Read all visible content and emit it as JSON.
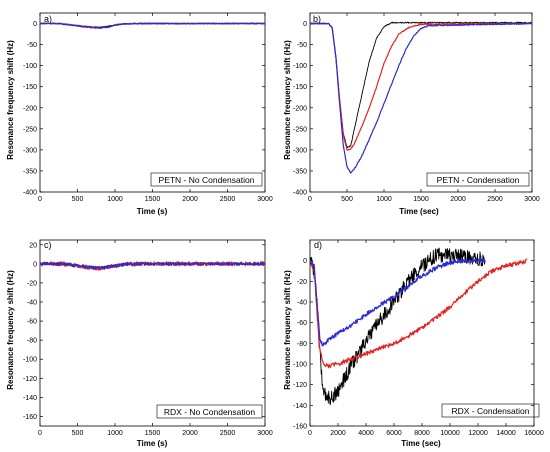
{
  "chart_data": [
    {
      "type": "line",
      "panel_label": "a)",
      "annotation": "PETN - No Condensation",
      "xlabel": "Time (s)",
      "ylabel": "Resonance frequency shift (Hz)",
      "xlim": [
        0,
        3000
      ],
      "ylim": [
        -400,
        25
      ],
      "xticks": [
        0,
        500,
        1000,
        1500,
        2000,
        2500,
        3000
      ],
      "yticks": [
        0,
        -50,
        -100,
        -150,
        -200,
        -250,
        -300,
        -350,
        -400
      ],
      "colors": [
        "#000000",
        "#e32222",
        "#2b2bd6"
      ],
      "series": [
        {
          "color": "#000000",
          "noise": 1.2,
          "points": [
            [
              0,
              0
            ],
            [
              250,
              0
            ],
            [
              400,
              -3
            ],
            [
              550,
              -6
            ],
            [
              700,
              -8
            ],
            [
              800,
              -9
            ],
            [
              900,
              -7
            ],
            [
              1000,
              -3
            ],
            [
              1100,
              -1
            ],
            [
              1300,
              0
            ],
            [
              3000,
              0
            ]
          ]
        },
        {
          "color": "#e32222",
          "noise": 1.2,
          "points": [
            [
              0,
              0
            ],
            [
              250,
              0
            ],
            [
              400,
              -3
            ],
            [
              550,
              -7
            ],
            [
              700,
              -10
            ],
            [
              800,
              -11
            ],
            [
              900,
              -9
            ],
            [
              1000,
              -4
            ],
            [
              1100,
              -1
            ],
            [
              1300,
              0
            ],
            [
              3000,
              0
            ]
          ]
        },
        {
          "color": "#2b2bd6",
          "noise": 1.2,
          "points": [
            [
              0,
              0
            ],
            [
              250,
              0
            ],
            [
              400,
              -3
            ],
            [
              550,
              -6
            ],
            [
              700,
              -9
            ],
            [
              800,
              -10
            ],
            [
              900,
              -8
            ],
            [
              1000,
              -4
            ],
            [
              1100,
              -1
            ],
            [
              1300,
              0
            ],
            [
              3000,
              0
            ]
          ]
        }
      ]
    },
    {
      "type": "line",
      "panel_label": "b)",
      "annotation": "PETN - Condensation",
      "xlabel": "Time (sec)",
      "ylabel": "Resonance frequency shift (Hz)",
      "xlim": [
        0,
        3000
      ],
      "ylim": [
        -400,
        25
      ],
      "xticks": [
        0,
        500,
        1000,
        1500,
        2000,
        2500,
        3000
      ],
      "yticks": [
        0,
        -50,
        -100,
        -150,
        -200,
        -250,
        -300,
        -350,
        -400
      ],
      "colors": [
        "#000000",
        "#e32222",
        "#2b2bd6"
      ],
      "series": [
        {
          "color": "#000000",
          "noise": 1.5,
          "points": [
            [
              0,
              0
            ],
            [
              250,
              0
            ],
            [
              300,
              -10
            ],
            [
              350,
              -80
            ],
            [
              400,
              -180
            ],
            [
              450,
              -260
            ],
            [
              500,
              -295
            ],
            [
              550,
              -290
            ],
            [
              600,
              -250
            ],
            [
              700,
              -170
            ],
            [
              800,
              -90
            ],
            [
              900,
              -35
            ],
            [
              1000,
              -8
            ],
            [
              1100,
              2
            ],
            [
              1300,
              2
            ],
            [
              3000,
              2
            ]
          ]
        },
        {
          "color": "#e32222",
          "noise": 1.2,
          "points": [
            [
              0,
              0
            ],
            [
              250,
              0
            ],
            [
              300,
              -10
            ],
            [
              350,
              -80
            ],
            [
              400,
              -180
            ],
            [
              450,
              -265
            ],
            [
              500,
              -300
            ],
            [
              550,
              -298
            ],
            [
              600,
              -285
            ],
            [
              700,
              -245
            ],
            [
              800,
              -200
            ],
            [
              900,
              -150
            ],
            [
              1000,
              -95
            ],
            [
              1100,
              -55
            ],
            [
              1200,
              -25
            ],
            [
              1350,
              -8
            ],
            [
              1500,
              -2
            ],
            [
              3000,
              0
            ]
          ]
        },
        {
          "color": "#2b2bd6",
          "noise": 1.2,
          "points": [
            [
              0,
              0
            ],
            [
              250,
              0
            ],
            [
              300,
              -10
            ],
            [
              350,
              -80
            ],
            [
              400,
              -190
            ],
            [
              450,
              -290
            ],
            [
              500,
              -340
            ],
            [
              550,
              -355
            ],
            [
              600,
              -345
            ],
            [
              700,
              -315
            ],
            [
              800,
              -275
            ],
            [
              900,
              -235
            ],
            [
              1000,
              -190
            ],
            [
              1100,
              -145
            ],
            [
              1200,
              -100
            ],
            [
              1300,
              -60
            ],
            [
              1400,
              -30
            ],
            [
              1500,
              -12
            ],
            [
              1600,
              -5
            ],
            [
              3000,
              0
            ]
          ]
        }
      ]
    },
    {
      "type": "line",
      "panel_label": "c)",
      "annotation": "RDX - No Condensation",
      "xlabel": "Time (s)",
      "ylabel": "Resonance frequency shift (Hz)",
      "xlim": [
        0,
        3000
      ],
      "ylim": [
        -170,
        25
      ],
      "xticks": [
        0,
        500,
        1000,
        1500,
        2000,
        2500,
        3000
      ],
      "yticks": [
        20,
        0,
        -20,
        -40,
        -60,
        -80,
        -100,
        -120,
        -140,
        -160
      ],
      "colors": [
        "#000000",
        "#e32222",
        "#2b2bd6"
      ],
      "series": [
        {
          "color": "#000000",
          "noise": 1.5,
          "points": [
            [
              0,
              0
            ],
            [
              300,
              0
            ],
            [
              500,
              -2
            ],
            [
              700,
              -4
            ],
            [
              850,
              -4
            ],
            [
              1000,
              -2
            ],
            [
              1200,
              0
            ],
            [
              3000,
              0
            ]
          ]
        },
        {
          "color": "#e32222",
          "noise": 2.2,
          "points": [
            [
              0,
              0
            ],
            [
              300,
              0
            ],
            [
              500,
              -2
            ],
            [
              700,
              -4
            ],
            [
              850,
              -5
            ],
            [
              1000,
              -2
            ],
            [
              1200,
              0
            ],
            [
              3000,
              0
            ]
          ]
        },
        {
          "color": "#2b2bd6",
          "noise": 1.5,
          "points": [
            [
              0,
              0
            ],
            [
              300,
              0
            ],
            [
              500,
              -2
            ],
            [
              700,
              -4
            ],
            [
              850,
              -4
            ],
            [
              1000,
              -2
            ],
            [
              1200,
              0
            ],
            [
              3000,
              0
            ]
          ]
        }
      ]
    },
    {
      "type": "line",
      "panel_label": "d)",
      "annotation": "RDX - Condensation",
      "xlabel": "Time (sec)",
      "ylabel": "Resonance frequency shift (Hz)",
      "xlim": [
        0,
        16000
      ],
      "ylim": [
        -160,
        20
      ],
      "xticks": [
        0,
        2000,
        4000,
        6000,
        8000,
        10000,
        12000,
        14000,
        16000
      ],
      "yticks": [
        0,
        -20,
        -40,
        -60,
        -80,
        -100,
        -120,
        -140,
        -160
      ],
      "colors": [
        "#000000",
        "#e32222",
        "#2b2bd6"
      ],
      "series": [
        {
          "color": "#000000",
          "noise": 7,
          "points": [
            [
              0,
              0
            ],
            [
              300,
              -10
            ],
            [
              500,
              -40
            ],
            [
              700,
              -90
            ],
            [
              900,
              -120
            ],
            [
              1100,
              -130
            ],
            [
              1500,
              -133
            ],
            [
              2000,
              -126
            ],
            [
              3000,
              -100
            ],
            [
              4000,
              -78
            ],
            [
              5000,
              -58
            ],
            [
              6000,
              -40
            ],
            [
              7000,
              -20
            ],
            [
              8000,
              -5
            ],
            [
              9000,
              5
            ],
            [
              10000,
              6
            ],
            [
              11000,
              4
            ],
            [
              12000,
              2
            ],
            [
              12500,
              1
            ]
          ]
        },
        {
          "color": "#e32222",
          "noise": 2,
          "points": [
            [
              0,
              0
            ],
            [
              300,
              -10
            ],
            [
              500,
              -50
            ],
            [
              700,
              -85
            ],
            [
              900,
              -98
            ],
            [
              1200,
              -102
            ],
            [
              2000,
              -100
            ],
            [
              3000,
              -95
            ],
            [
              4000,
              -90
            ],
            [
              5000,
              -85
            ],
            [
              6000,
              -80
            ],
            [
              7000,
              -73
            ],
            [
              8000,
              -65
            ],
            [
              9000,
              -55
            ],
            [
              10000,
              -45
            ],
            [
              11000,
              -32
            ],
            [
              12000,
              -20
            ],
            [
              13000,
              -10
            ],
            [
              14000,
              -5
            ],
            [
              15000,
              -2
            ],
            [
              15500,
              0
            ]
          ]
        },
        {
          "color": "#2b2bd6",
          "noise": 2,
          "points": [
            [
              0,
              0
            ],
            [
              300,
              -5
            ],
            [
              500,
              -40
            ],
            [
              700,
              -75
            ],
            [
              900,
              -82
            ],
            [
              1200,
              -78
            ],
            [
              2000,
              -70
            ],
            [
              3000,
              -62
            ],
            [
              4000,
              -52
            ],
            [
              5000,
              -43
            ],
            [
              6000,
              -35
            ],
            [
              7000,
              -25
            ],
            [
              8000,
              -15
            ],
            [
              9000,
              -7
            ],
            [
              10000,
              -2
            ],
            [
              11000,
              0
            ],
            [
              12000,
              0
            ],
            [
              12500,
              0
            ]
          ]
        }
      ]
    }
  ]
}
